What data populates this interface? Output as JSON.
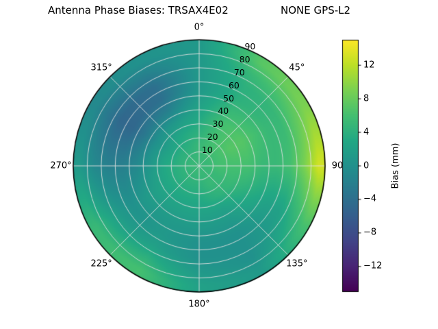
{
  "chart_data": {
    "type": "heatmap",
    "projection": "polar",
    "title": "Antenna Phase Biases: TRSAX4E02                NONE GPS-L2",
    "theta_zero": "top",
    "theta_direction": "clockwise",
    "units": "mm",
    "azimuth_deg": [
      0,
      30,
      60,
      90,
      120,
      150,
      180,
      210,
      240,
      270,
      300,
      330
    ],
    "zenith_deg": [
      5,
      15,
      25,
      35,
      45,
      55,
      65,
      75,
      85
    ],
    "values_mm": [
      [
        5,
        5,
        4,
        3,
        2,
        1,
        1,
        1,
        1
      ],
      [
        5,
        6,
        6,
        6,
        5,
        4,
        4,
        5,
        7
      ],
      [
        5,
        6,
        7,
        7,
        6,
        5,
        5,
        7,
        9
      ],
      [
        5,
        6,
        6,
        6,
        5,
        5,
        6,
        9,
        13
      ],
      [
        5,
        5,
        5,
        4,
        3,
        2,
        2,
        4,
        6
      ],
      [
        5,
        5,
        4,
        2,
        1,
        0,
        0,
        0,
        1
      ],
      [
        5,
        4,
        3,
        2,
        1,
        0,
        0,
        1,
        2
      ],
      [
        5,
        4,
        3,
        2,
        1,
        1,
        2,
        4,
        6
      ],
      [
        5,
        4,
        3,
        2,
        1,
        0,
        1,
        3,
        5
      ],
      [
        5,
        4,
        3,
        1,
        -1,
        -2,
        -2,
        -1,
        1
      ],
      [
        5,
        4,
        2,
        0,
        -3,
        -5,
        -5,
        -3,
        -1
      ],
      [
        5,
        4,
        3,
        1,
        -2,
        -4,
        -4,
        -2,
        0
      ]
    ],
    "vmin": -15,
    "vmax": 15,
    "colorbar_label": "Bias (mm)"
  },
  "polar": {
    "grid_color": "rgba(225,225,225,0.9)",
    "outline_color": "#000000",
    "r_max": 90,
    "radial_label_angle_deg": 22.5,
    "radial_ticks": [
      "10",
      "20",
      "30",
      "40",
      "50",
      "60",
      "70",
      "80",
      "90"
    ],
    "angle_labels": [
      {
        "angle_deg": 0,
        "label": "0°"
      },
      {
        "angle_deg": 45,
        "label": "45°"
      },
      {
        "angle_deg": 90,
        "label": "90"
      },
      {
        "angle_deg": 135,
        "label": "135°"
      },
      {
        "angle_deg": 180,
        "label": "180°"
      },
      {
        "angle_deg": 225,
        "label": "225°"
      },
      {
        "angle_deg": 270,
        "label": "270°"
      },
      {
        "angle_deg": 315,
        "label": "315°"
      }
    ]
  },
  "colorbar": {
    "label": "Bias (mm)",
    "vmin": -15,
    "vmax": 15,
    "ticks": [
      {
        "value": 12,
        "label": "12"
      },
      {
        "value": 8,
        "label": "8"
      },
      {
        "value": 4,
        "label": "4"
      },
      {
        "value": 0,
        "label": "0"
      },
      {
        "value": -4,
        "label": "−4"
      },
      {
        "value": -8,
        "label": "−8"
      },
      {
        "value": -12,
        "label": "−12"
      }
    ],
    "colormap_viridis": [
      "#440154",
      "#482475",
      "#414487",
      "#355f8d",
      "#2a788e",
      "#21918c",
      "#22a884",
      "#44bf70",
      "#7ad151",
      "#bddf26",
      "#fde725"
    ]
  }
}
